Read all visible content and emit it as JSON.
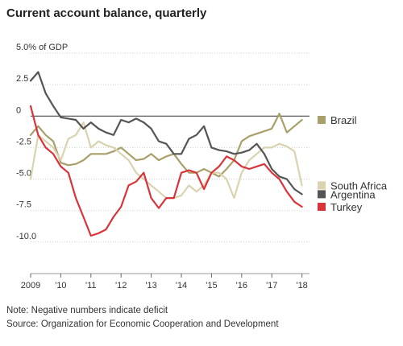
{
  "title": "Current account balance, quarterly",
  "note": "Note: Negative numbers indicate deficit",
  "source": "Source: Organization for Economic Cooperation and Development",
  "chart_data": {
    "type": "line",
    "title": "Current account balance, quarterly",
    "xlabel": "",
    "ylabel": "",
    "y_unit_label": "5.0% of GDP",
    "ylim": [
      -12.5,
      5.0
    ],
    "xlim": [
      2009.0,
      2018.25
    ],
    "grid": "horizontal",
    "zero_line": true,
    "legend_placement": "right",
    "y_ticks": [
      {
        "value": 5.0,
        "label": "5.0% of GDP"
      },
      {
        "value": 2.5,
        "label": "2.5"
      },
      {
        "value": 0,
        "label": "0"
      },
      {
        "value": -2.5,
        "label": "-2.5"
      },
      {
        "value": -5.0,
        "label": "-5.0"
      },
      {
        "value": -7.5,
        "label": "-7.5"
      },
      {
        "value": -10.0,
        "label": "-10.0"
      }
    ],
    "x_ticks": [
      {
        "value": 2009,
        "label": "2009"
      },
      {
        "value": 2010,
        "label": "'10"
      },
      {
        "value": 2011,
        "label": "'11"
      },
      {
        "value": 2012,
        "label": "'12"
      },
      {
        "value": 2013,
        "label": "'13"
      },
      {
        "value": 2014,
        "label": "'14"
      },
      {
        "value": 2015,
        "label": "'15"
      },
      {
        "value": 2016,
        "label": "'16"
      },
      {
        "value": 2017,
        "label": "'17"
      },
      {
        "value": 2018,
        "label": "'18"
      }
    ],
    "x": [
      2009.0,
      2009.25,
      2009.5,
      2009.75,
      2010.0,
      2010.25,
      2010.5,
      2010.75,
      2011.0,
      2011.25,
      2011.5,
      2011.75,
      2012.0,
      2012.25,
      2012.5,
      2012.75,
      2013.0,
      2013.25,
      2013.5,
      2013.75,
      2014.0,
      2014.25,
      2014.5,
      2014.75,
      2015.0,
      2015.25,
      2015.5,
      2015.75,
      2016.0,
      2016.25,
      2016.5,
      2016.75,
      2017.0,
      2017.25,
      2017.5,
      2017.75,
      2018.0
    ],
    "series": [
      {
        "name": "Brazil",
        "color": "#a8a06a",
        "legend_value": -0.3,
        "values": [
          -1.5,
          -0.8,
          -1.5,
          -2.0,
          -3.7,
          -3.9,
          -3.8,
          -3.5,
          -3.0,
          -3.0,
          -3.0,
          -2.8,
          -2.5,
          -3.0,
          -3.5,
          -3.4,
          -3.0,
          -3.5,
          -3.2,
          -3.0,
          -3.8,
          -4.5,
          -4.5,
          -4.2,
          -4.5,
          -4.8,
          -4.2,
          -3.5,
          -2.0,
          -1.6,
          -1.4,
          -1.2,
          -1.0,
          0.2,
          -1.3,
          -0.8,
          -0.3
        ]
      },
      {
        "name": "South Africa",
        "color": "#d9d3b0",
        "legend_value": -5.5,
        "values": [
          -5.0,
          -1.5,
          -2.0,
          -2.5,
          -3.5,
          -1.8,
          -1.5,
          -0.5,
          -2.5,
          -2.0,
          -2.3,
          -2.5,
          -3.0,
          -3.5,
          -4.5,
          -5.0,
          -5.5,
          -6.0,
          -6.5,
          -6.5,
          -6.3,
          -5.5,
          -6.0,
          -5.5,
          -4.5,
          -4.5,
          -5.0,
          -6.5,
          -4.5,
          -3.5,
          -3.0,
          -2.5,
          -2.5,
          -2.2,
          -2.4,
          -2.8,
          -5.5
        ]
      },
      {
        "name": "Argentina",
        "color": "#555555",
        "legend_value": -6.2,
        "values": [
          2.8,
          3.5,
          1.8,
          0.8,
          -0.1,
          -0.2,
          -0.3,
          -1.0,
          -0.5,
          -1.0,
          -1.3,
          -1.5,
          -0.3,
          -0.5,
          -0.2,
          -0.5,
          -1.0,
          -2.0,
          -2.2,
          -3.0,
          -3.0,
          -1.8,
          -1.5,
          -0.8,
          -2.5,
          -2.7,
          -2.8,
          -3.0,
          -2.9,
          -2.7,
          -2.2,
          -3.0,
          -4.2,
          -4.8,
          -5.0,
          -5.8,
          -6.2
        ]
      },
      {
        "name": "Turkey",
        "color": "#d8343a",
        "legend_value": -7.2,
        "values": [
          0.8,
          -1.5,
          -2.5,
          -3.0,
          -4.0,
          -4.5,
          -6.5,
          -8.0,
          -9.5,
          -9.3,
          -9.0,
          -8.0,
          -7.2,
          -5.5,
          -5.2,
          -4.5,
          -6.5,
          -7.3,
          -6.5,
          -6.5,
          -4.5,
          -4.3,
          -4.5,
          -5.8,
          -4.5,
          -4.0,
          -3.2,
          -3.5,
          -4.0,
          -4.2,
          -4.0,
          -3.8,
          -4.5,
          -5.0,
          -6.0,
          -6.8,
          -7.2
        ]
      }
    ]
  }
}
